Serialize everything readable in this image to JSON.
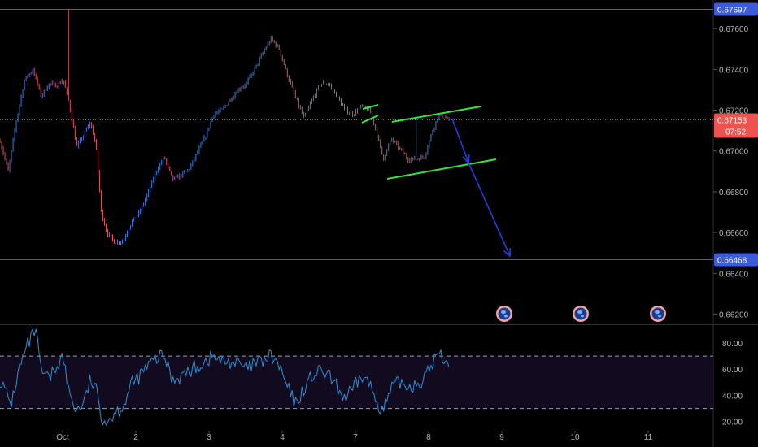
{
  "chart_data": [
    {
      "type": "candlestick",
      "price_axis": {
        "ticks": [
          "0.67600",
          "0.67400",
          "0.67200",
          "0.67000",
          "0.66800",
          "0.66600",
          "0.66400",
          "0.66200"
        ],
        "range": [
          0.6615,
          0.6774
        ]
      },
      "time_axis": {
        "ticks": [
          "Oct",
          "2",
          "3",
          "4",
          "7",
          "8",
          "9",
          "10",
          "11"
        ]
      },
      "horizontal_levels": [
        {
          "label": "0.67697",
          "value": 0.67697,
          "color": "#3b5bdb"
        },
        {
          "label": "0.66468",
          "value": 0.66468,
          "color": "#3b5bdb"
        }
      ],
      "current_price": {
        "label": "0.67153",
        "value": 0.67153,
        "countdown": "07:52",
        "color": "#ef5350"
      },
      "candle_colors": {
        "up": "#3d7ed8",
        "down": "#e0525d"
      },
      "price_path": [
        [
          0.0,
          0.6705
        ],
        [
          0.015,
          0.669
        ],
        [
          0.03,
          0.6715
        ],
        [
          0.045,
          0.6735
        ],
        [
          0.06,
          0.674
        ],
        [
          0.075,
          0.6727
        ],
        [
          0.09,
          0.6733
        ],
        [
          0.105,
          0.6732
        ],
        [
          0.115,
          0.6735
        ],
        [
          0.125,
          0.6725
        ],
        [
          0.14,
          0.6702
        ],
        [
          0.155,
          0.6709
        ],
        [
          0.165,
          0.6714
        ],
        [
          0.175,
          0.6703
        ],
        [
          0.185,
          0.667
        ],
        [
          0.195,
          0.666
        ],
        [
          0.21,
          0.6655
        ],
        [
          0.225,
          0.6656
        ],
        [
          0.24,
          0.6665
        ],
        [
          0.255,
          0.667
        ],
        [
          0.27,
          0.6679
        ],
        [
          0.285,
          0.669
        ],
        [
          0.3,
          0.6697
        ],
        [
          0.315,
          0.6686
        ],
        [
          0.33,
          0.6688
        ],
        [
          0.345,
          0.6691
        ],
        [
          0.36,
          0.6699
        ],
        [
          0.375,
          0.6707
        ],
        [
          0.39,
          0.6718
        ],
        [
          0.405,
          0.672
        ],
        [
          0.42,
          0.6725
        ],
        [
          0.435,
          0.673
        ],
        [
          0.45,
          0.6733
        ],
        [
          0.465,
          0.674
        ],
        [
          0.48,
          0.6748
        ],
        [
          0.495,
          0.6755
        ],
        [
          0.51,
          0.675
        ],
        [
          0.525,
          0.6737
        ],
        [
          0.54,
          0.6726
        ],
        [
          0.555,
          0.6716
        ],
        [
          0.57,
          0.6725
        ],
        [
          0.585,
          0.6733
        ],
        [
          0.6,
          0.6733
        ],
        [
          0.615,
          0.6727
        ],
        [
          0.63,
          0.672
        ],
        [
          0.645,
          0.6718
        ],
        [
          0.66,
          0.6722
        ],
        [
          0.675,
          0.672
        ],
        [
          0.685,
          0.6712
        ],
        [
          0.7,
          0.6696
        ],
        [
          0.715,
          0.6706
        ],
        [
          0.73,
          0.6701
        ],
        [
          0.745,
          0.6696
        ],
        [
          0.76,
          0.6696
        ],
        [
          0.775,
          0.6697
        ],
        [
          0.79,
          0.671
        ],
        [
          0.8,
          0.6717
        ],
        [
          0.81,
          0.6717
        ],
        [
          0.82,
          0.6715
        ]
      ],
      "markers": {
        "channel_color": "#33e63f",
        "arrow_color": "#1e3fe0"
      },
      "event_icon": "globe-event-icon",
      "event_count": 3
    },
    {
      "type": "line",
      "indicator": "oscillator",
      "ticks": [
        "80.00",
        "60.00",
        "40.00",
        "20.00"
      ],
      "range": [
        13,
        93
      ],
      "upper_band": 70,
      "lower_band": 30,
      "line_color": "#2f8fd4",
      "band_fill": "#120a1e",
      "path": [
        [
          0.0,
          52
        ],
        [
          0.02,
          33
        ],
        [
          0.035,
          60
        ],
        [
          0.05,
          78
        ],
        [
          0.065,
          90
        ],
        [
          0.075,
          58
        ],
        [
          0.09,
          52
        ],
        [
          0.105,
          64
        ],
        [
          0.115,
          70
        ],
        [
          0.125,
          44
        ],
        [
          0.14,
          28
        ],
        [
          0.155,
          36
        ],
        [
          0.165,
          52
        ],
        [
          0.175,
          45
        ],
        [
          0.185,
          25
        ],
        [
          0.195,
          20
        ],
        [
          0.21,
          27
        ],
        [
          0.225,
          32
        ],
        [
          0.24,
          48
        ],
        [
          0.255,
          55
        ],
        [
          0.27,
          62
        ],
        [
          0.285,
          68
        ],
        [
          0.3,
          70
        ],
        [
          0.315,
          52
        ],
        [
          0.33,
          55
        ],
        [
          0.345,
          58
        ],
        [
          0.36,
          62
        ],
        [
          0.375,
          66
        ],
        [
          0.39,
          70
        ],
        [
          0.405,
          65
        ],
        [
          0.42,
          66
        ],
        [
          0.435,
          64
        ],
        [
          0.45,
          60
        ],
        [
          0.465,
          64
        ],
        [
          0.48,
          66
        ],
        [
          0.495,
          70
        ],
        [
          0.51,
          62
        ],
        [
          0.525,
          46
        ],
        [
          0.54,
          33
        ],
        [
          0.555,
          45
        ],
        [
          0.57,
          55
        ],
        [
          0.585,
          58
        ],
        [
          0.6,
          55
        ],
        [
          0.615,
          46
        ],
        [
          0.63,
          38
        ],
        [
          0.645,
          44
        ],
        [
          0.66,
          55
        ],
        [
          0.675,
          49
        ],
        [
          0.685,
          38
        ],
        [
          0.7,
          28
        ],
        [
          0.715,
          45
        ],
        [
          0.73,
          50
        ],
        [
          0.745,
          47
        ],
        [
          0.76,
          49
        ],
        [
          0.775,
          52
        ],
        [
          0.79,
          65
        ],
        [
          0.8,
          72
        ],
        [
          0.81,
          68
        ],
        [
          0.82,
          66
        ]
      ]
    }
  ]
}
